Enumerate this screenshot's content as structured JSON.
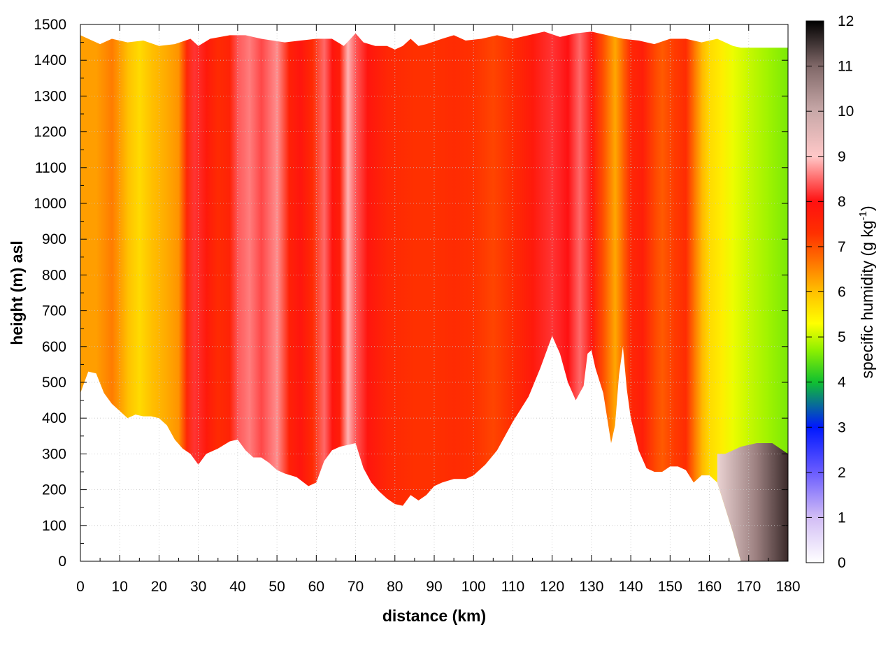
{
  "chart_data": {
    "type": "heatmap",
    "title": "",
    "xlabel": "distance (km)",
    "ylabel": "height (m) asl",
    "colorbar_label": "specific humidity (g kg",
    "colorbar_label_sup": "-1",
    "colorbar_label_end": ")",
    "xlim": [
      0,
      180
    ],
    "ylim": [
      0,
      1500
    ],
    "clim": [
      0,
      12
    ],
    "x_ticks": [
      "0",
      "10",
      "20",
      "30",
      "40",
      "50",
      "60",
      "70",
      "80",
      "90",
      "100",
      "110",
      "120",
      "130",
      "140",
      "150",
      "160",
      "170",
      "180"
    ],
    "y_ticks": [
      "0",
      "100",
      "200",
      "300",
      "400",
      "500",
      "600",
      "700",
      "800",
      "900",
      "1000",
      "1100",
      "1200",
      "1300",
      "1400",
      "1500"
    ],
    "c_ticks": [
      "0",
      "1",
      "2",
      "3",
      "4",
      "5",
      "6",
      "7",
      "8",
      "9",
      "10",
      "11",
      "12"
    ],
    "grid": true,
    "colormap": [
      {
        "v": 0,
        "c": "#ffffff"
      },
      {
        "v": 1,
        "c": "#d2bdf5"
      },
      {
        "v": 2,
        "c": "#6a5cff"
      },
      {
        "v": 3,
        "c": "#0018ff"
      },
      {
        "v": 4,
        "c": "#10c030"
      },
      {
        "v": 4.7,
        "c": "#8cf000"
      },
      {
        "v": 5.3,
        "c": "#ffff00"
      },
      {
        "v": 6,
        "c": "#ffc000"
      },
      {
        "v": 6.7,
        "c": "#ff7000"
      },
      {
        "v": 7.3,
        "c": "#ff3000"
      },
      {
        "v": 8,
        "c": "#ff1010"
      },
      {
        "v": 8.5,
        "c": "#ff6a6a"
      },
      {
        "v": 9,
        "c": "#ffc8c8"
      },
      {
        "v": 10,
        "c": "#c8a8a8"
      },
      {
        "v": 11,
        "c": "#806868"
      },
      {
        "v": 12,
        "c": "#000000"
      }
    ],
    "terrain_km_m": [
      [
        0,
        470
      ],
      [
        2,
        530
      ],
      [
        4,
        525
      ],
      [
        6,
        470
      ],
      [
        8,
        440
      ],
      [
        10,
        420
      ],
      [
        12,
        400
      ],
      [
        14,
        410
      ],
      [
        16,
        405
      ],
      [
        18,
        405
      ],
      [
        20,
        400
      ],
      [
        22,
        380
      ],
      [
        24,
        340
      ],
      [
        26,
        315
      ],
      [
        28,
        300
      ],
      [
        30,
        270
      ],
      [
        32,
        300
      ],
      [
        35,
        315
      ],
      [
        38,
        335
      ],
      [
        40,
        340
      ],
      [
        42,
        310
      ],
      [
        44,
        290
      ],
      [
        46,
        290
      ],
      [
        48,
        275
      ],
      [
        50,
        255
      ],
      [
        52,
        245
      ],
      [
        55,
        235
      ],
      [
        58,
        210
      ],
      [
        60,
        220
      ],
      [
        62,
        280
      ],
      [
        64,
        310
      ],
      [
        66,
        320
      ],
      [
        68,
        325
      ],
      [
        70,
        330
      ],
      [
        72,
        260
      ],
      [
        74,
        220
      ],
      [
        76,
        195
      ],
      [
        78,
        175
      ],
      [
        80,
        160
      ],
      [
        82,
        155
      ],
      [
        84,
        185
      ],
      [
        86,
        170
      ],
      [
        88,
        185
      ],
      [
        90,
        210
      ],
      [
        92,
        220
      ],
      [
        95,
        230
      ],
      [
        98,
        230
      ],
      [
        100,
        240
      ],
      [
        103,
        270
      ],
      [
        106,
        310
      ],
      [
        110,
        390
      ],
      [
        114,
        460
      ],
      [
        117,
        540
      ],
      [
        120,
        630
      ],
      [
        122,
        580
      ],
      [
        124,
        500
      ],
      [
        126,
        450
      ],
      [
        128,
        490
      ],
      [
        129,
        580
      ],
      [
        130,
        590
      ],
      [
        131,
        540
      ],
      [
        133,
        470
      ],
      [
        135,
        330
      ],
      [
        136,
        380
      ],
      [
        137,
        520
      ],
      [
        138,
        600
      ],
      [
        139,
        480
      ],
      [
        140,
        400
      ],
      [
        142,
        310
      ],
      [
        144,
        260
      ],
      [
        146,
        250
      ],
      [
        148,
        250
      ],
      [
        150,
        265
      ],
      [
        152,
        265
      ],
      [
        154,
        255
      ],
      [
        156,
        220
      ],
      [
        158,
        240
      ],
      [
        160,
        240
      ],
      [
        162,
        220
      ],
      [
        164,
        150
      ],
      [
        166,
        80
      ],
      [
        168,
        0
      ],
      [
        180,
        0
      ]
    ],
    "top_km_m": [
      [
        0,
        1470
      ],
      [
        2,
        1460
      ],
      [
        5,
        1445
      ],
      [
        8,
        1460
      ],
      [
        12,
        1450
      ],
      [
        16,
        1455
      ],
      [
        20,
        1440
      ],
      [
        24,
        1445
      ],
      [
        28,
        1460
      ],
      [
        30,
        1440
      ],
      [
        33,
        1460
      ],
      [
        38,
        1470
      ],
      [
        42,
        1470
      ],
      [
        46,
        1460
      ],
      [
        52,
        1450
      ],
      [
        56,
        1455
      ],
      [
        60,
        1460
      ],
      [
        64,
        1460
      ],
      [
        67,
        1440
      ],
      [
        70,
        1475
      ],
      [
        72,
        1450
      ],
      [
        75,
        1440
      ],
      [
        78,
        1440
      ],
      [
        80,
        1430
      ],
      [
        82,
        1440
      ],
      [
        84,
        1460
      ],
      [
        86,
        1440
      ],
      [
        88,
        1445
      ],
      [
        92,
        1460
      ],
      [
        95,
        1470
      ],
      [
        98,
        1455
      ],
      [
        102,
        1460
      ],
      [
        106,
        1470
      ],
      [
        110,
        1460
      ],
      [
        114,
        1470
      ],
      [
        118,
        1480
      ],
      [
        122,
        1465
      ],
      [
        126,
        1475
      ],
      [
        130,
        1480
      ],
      [
        134,
        1470
      ],
      [
        138,
        1460
      ],
      [
        142,
        1455
      ],
      [
        146,
        1445
      ],
      [
        150,
        1460
      ],
      [
        154,
        1460
      ],
      [
        158,
        1450
      ],
      [
        162,
        1460
      ],
      [
        166,
        1440
      ],
      [
        168,
        1435
      ],
      [
        180,
        1435
      ]
    ],
    "humidity_profile_km": [
      [
        0,
        6.3
      ],
      [
        4,
        6.3
      ],
      [
        8,
        6.6
      ],
      [
        12,
        6.0
      ],
      [
        15,
        5.7
      ],
      [
        18,
        6.0
      ],
      [
        22,
        6.2
      ],
      [
        25,
        6.4
      ],
      [
        27,
        7.5
      ],
      [
        29,
        8.2
      ],
      [
        32,
        7.8
      ],
      [
        35,
        7.4
      ],
      [
        38,
        7.6
      ],
      [
        40,
        8.4
      ],
      [
        43,
        8.6
      ],
      [
        46,
        8.3
      ],
      [
        50,
        8.7
      ],
      [
        53,
        7.6
      ],
      [
        56,
        7.9
      ],
      [
        59,
        7.4
      ],
      [
        62,
        8.5
      ],
      [
        64,
        7.9
      ],
      [
        66,
        7.7
      ],
      [
        68,
        8.9
      ],
      [
        70,
        8.4
      ],
      [
        73,
        7.9
      ],
      [
        78,
        7.5
      ],
      [
        85,
        7.3
      ],
      [
        90,
        7.3
      ],
      [
        95,
        7.4
      ],
      [
        100,
        7.3
      ],
      [
        105,
        7.1
      ],
      [
        110,
        7.4
      ],
      [
        115,
        7.8
      ],
      [
        120,
        8.2
      ],
      [
        124,
        8.0
      ],
      [
        127,
        8.5
      ],
      [
        130,
        7.9
      ],
      [
        133,
        7.0
      ],
      [
        136,
        6.2
      ],
      [
        138,
        6.8
      ],
      [
        140,
        7.5
      ],
      [
        143,
        7.7
      ],
      [
        146,
        7.1
      ],
      [
        148,
        6.9
      ],
      [
        151,
        7.2
      ],
      [
        154,
        7.4
      ],
      [
        156,
        6.7
      ],
      [
        158,
        6.1
      ],
      [
        160,
        5.7
      ],
      [
        163,
        5.5
      ],
      [
        166,
        5.2
      ],
      [
        170,
        5.0
      ],
      [
        175,
        4.8
      ],
      [
        180,
        4.6
      ]
    ]
  }
}
